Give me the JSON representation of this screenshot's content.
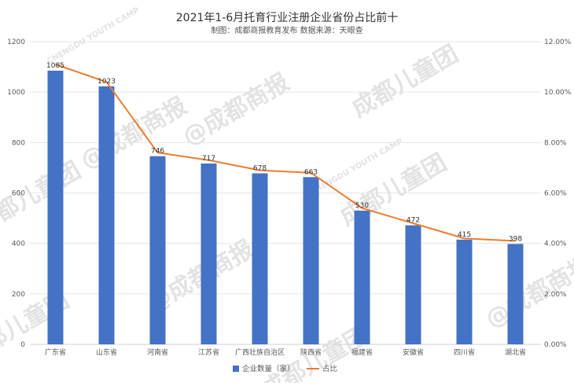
{
  "chart_data": {
    "type": "bar",
    "title": "2021年1-6月托育行业注册企业省份占比前十",
    "subtitle": "制图：成都商报教育发布  数据来源：天眼查",
    "categories": [
      "广东省",
      "山东省",
      "河南省",
      "江苏省",
      "广西壮族自治区",
      "陕西省",
      "福建省",
      "安徽省",
      "四川省",
      "湖北省"
    ],
    "series": [
      {
        "name": "企业数量（家）",
        "type": "bar",
        "axis": "left",
        "color": "#4472c4",
        "values": [
          1085,
          1023,
          746,
          717,
          678,
          663,
          530,
          472,
          415,
          398
        ]
      },
      {
        "name": "占比",
        "type": "line",
        "axis": "right",
        "color": "#ed7d31",
        "values": [
          0.111,
          0.104,
          0.076,
          0.073,
          0.069,
          0.068,
          0.054,
          0.048,
          0.042,
          0.041
        ]
      }
    ],
    "left_axis": {
      "min": 0,
      "max": 1200,
      "ticks": [
        "0",
        "200",
        "400",
        "600",
        "800",
        "1000",
        "1200"
      ]
    },
    "right_axis": {
      "min": 0,
      "max": 0.12,
      "ticks": [
        "0.00%",
        "2.00%",
        "4.00%",
        "6.00%",
        "8.00%",
        "10.00%",
        "12.00%"
      ]
    },
    "grid": true,
    "legend": "bottom"
  },
  "watermark": {
    "texts": [
      "成都儿童团",
      "@成都商报",
      "CHENGDU YOUTH CAMP"
    ],
    "color": "#e3e3e3"
  }
}
